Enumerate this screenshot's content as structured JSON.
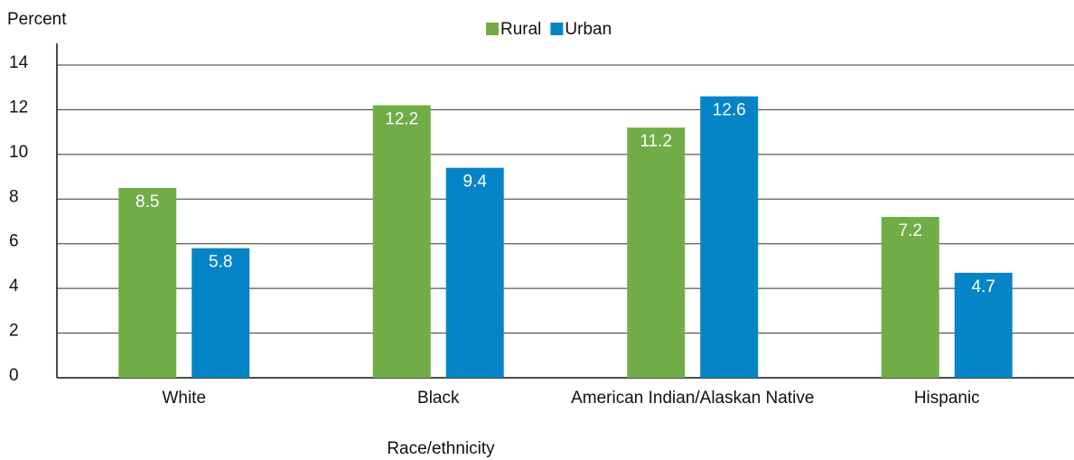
{
  "chart_data": {
    "type": "bar",
    "y_label": "Percent",
    "x_label": "Race/ethnicity",
    "categories": [
      "White",
      "Black",
      "American Indian/Alaskan Native",
      "Hispanic"
    ],
    "series": [
      {
        "name": "Rural",
        "color": "#70ad47",
        "values": [
          8.5,
          12.2,
          11.2,
          7.2
        ]
      },
      {
        "name": "Urban",
        "color": "#0584c8",
        "values": [
          5.8,
          9.4,
          12.6,
          4.7
        ]
      }
    ],
    "ylim": [
      0,
      14
    ],
    "yticks": [
      0,
      2,
      4,
      6,
      8,
      10,
      12,
      14
    ],
    "grid": true,
    "legend": "top"
  }
}
